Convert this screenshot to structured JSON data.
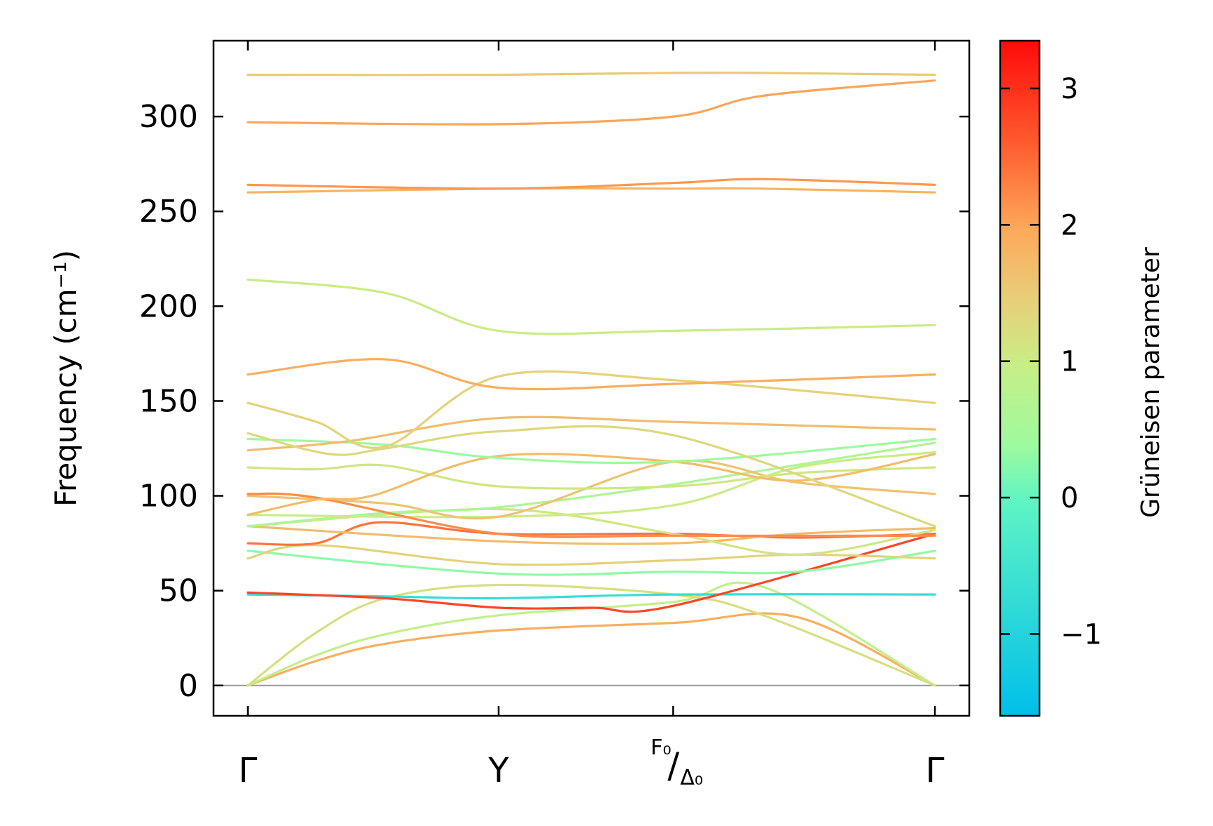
{
  "chart_data": {
    "type": "line",
    "title": "",
    "xlabel": "",
    "ylabel": "Frequency (cm⁻¹)",
    "ylim": [
      -16,
      340
    ],
    "yticks": [
      0,
      50,
      100,
      150,
      200,
      250,
      300
    ],
    "x_points": [
      {
        "label": "Γ",
        "x": 0.0
      },
      {
        "label": "Y",
        "x": 0.365
      },
      {
        "label": "F₀/Δ₀",
        "label_num": "F₀",
        "label_den": "Δ₀",
        "x": 0.619
      },
      {
        "label": "Γ",
        "x": 1.0
      }
    ],
    "xlim": [
      -0.05,
      1.05
    ],
    "colorbar": {
      "label": "Grüneisen parameter",
      "range": [
        -1.6,
        3.35
      ],
      "ticks": [
        -1,
        0,
        1,
        2,
        3
      ],
      "tick_labels": [
        "−1",
        "0",
        "1",
        "2",
        "3"
      ],
      "colors": [
        {
          "t": 0.0,
          "color": "#00bfea"
        },
        {
          "t": 0.32,
          "color": "#5ff5c4"
        },
        {
          "t": 0.4,
          "color": "#9dfa9f"
        },
        {
          "t": 0.52,
          "color": "#c8ee87"
        },
        {
          "t": 0.62,
          "color": "#e8cd78"
        },
        {
          "t": 0.72,
          "color": "#fca95a"
        },
        {
          "t": 0.85,
          "color": "#ff5a2e"
        },
        {
          "t": 1.0,
          "color": "#ff0a0a"
        }
      ]
    },
    "series": [
      {
        "name": "branch-1",
        "x": [
          0,
          0.1,
          0.2,
          0.365,
          0.619,
          0.8,
          1.0
        ],
        "y": [
          0,
          13,
          22,
          29,
          33,
          36,
          0
        ],
        "g": 1.9
      },
      {
        "name": "branch-2",
        "x": [
          0,
          0.1,
          0.2,
          0.365,
          0.619,
          0.75,
          1.0
        ],
        "y": [
          0,
          16,
          27,
          37,
          44,
          52,
          0
        ],
        "g": 0.9
      },
      {
        "name": "branch-3",
        "x": [
          0,
          0.1,
          0.2,
          0.365,
          0.619,
          0.75,
          1.0
        ],
        "y": [
          0,
          28,
          46,
          53,
          48,
          37,
          0
        ],
        "g": 1.2
      },
      {
        "name": "branch-4",
        "x": [
          0,
          0.2,
          0.365,
          0.619,
          1.0
        ],
        "y": [
          48,
          47,
          46,
          48,
          48
        ],
        "g": -0.7
      },
      {
        "name": "branch-5",
        "x": [
          0,
          0.2,
          0.365,
          0.5,
          0.619,
          1.0
        ],
        "y": [
          49,
          46,
          41,
          41,
          42,
          80
        ],
        "g": 2.8
      },
      {
        "name": "branch-6",
        "x": [
          0,
          0.365,
          0.619,
          0.8,
          1.0
        ],
        "y": [
          71,
          59,
          60,
          60,
          71
        ],
        "g": 0.3
      },
      {
        "name": "branch-7",
        "x": [
          0,
          0.1,
          0.365,
          0.619,
          0.8,
          1.0
        ],
        "y": [
          67,
          74,
          64,
          66,
          69,
          67
        ],
        "g": 1.4
      },
      {
        "name": "branch-8",
        "x": [
          0,
          0.1,
          0.19,
          0.365,
          0.619,
          0.8,
          1.0
        ],
        "y": [
          75,
          75,
          86,
          80,
          80,
          78,
          80
        ],
        "g": 2.4
      },
      {
        "name": "branch-9",
        "x": [
          0,
          0.365,
          0.619,
          0.8,
          1.0
        ],
        "y": [
          84,
          76,
          75,
          80,
          83
        ],
        "g": 1.7
      },
      {
        "name": "branch-10",
        "x": [
          0,
          0.365,
          0.619,
          0.8,
          1.0
        ],
        "y": [
          84,
          93,
          80,
          69,
          82
        ],
        "g": 1.1
      },
      {
        "name": "branch-11",
        "x": [
          0,
          0.2,
          0.365,
          0.619,
          1.0
        ],
        "y": [
          84,
          91,
          94,
          106,
          128
        ],
        "g": 0.6
      },
      {
        "name": "branch-12",
        "x": [
          0,
          0.365,
          0.619,
          0.8,
          1.0
        ],
        "y": [
          90,
          89,
          95,
          115,
          123
        ],
        "g": 1.0
      },
      {
        "name": "branch-13",
        "x": [
          0,
          0.2,
          0.365,
          0.619,
          0.8,
          1.0
        ],
        "y": [
          100,
          96,
          89,
          118,
          107,
          101
        ],
        "g": 1.6
      },
      {
        "name": "branch-14",
        "x": [
          0,
          0.1,
          0.365,
          0.619,
          1.0
        ],
        "y": [
          101,
          99,
          80,
          79,
          79
        ],
        "g": 2.2
      },
      {
        "name": "branch-15",
        "x": [
          0,
          0.1,
          0.2,
          0.365,
          0.619,
          0.8,
          1.0
        ],
        "y": [
          115,
          114,
          116,
          105,
          105,
          112,
          115
        ],
        "g": 1.1
      },
      {
        "name": "branch-16",
        "x": [
          0,
          0.1,
          0.18,
          0.365,
          0.619,
          0.8,
          1.0
        ],
        "y": [
          90,
          98,
          100,
          121,
          118,
          108,
          122
        ],
        "g": 1.7
      },
      {
        "name": "branch-17",
        "x": [
          0,
          0.2,
          0.365,
          0.619,
          1.0
        ],
        "y": [
          130,
          127,
          120,
          118,
          130
        ],
        "g": 0.4
      },
      {
        "name": "branch-18",
        "x": [
          0,
          0.15,
          0.365,
          0.619,
          1.0
        ],
        "y": [
          124,
          129,
          141,
          139,
          135
        ],
        "g": 1.7
      },
      {
        "name": "branch-19",
        "x": [
          0,
          0.12,
          0.2,
          0.365,
          0.619,
          1.0
        ],
        "y": [
          133,
          122,
          125,
          134,
          132,
          84
        ],
        "g": 1.3
      },
      {
        "name": "branch-20",
        "x": [
          0,
          0.1,
          0.2,
          0.365,
          0.619,
          1.0
        ],
        "y": [
          149,
          139,
          126,
          163,
          161,
          149
        ],
        "g": 1.4
      },
      {
        "name": "branch-21",
        "x": [
          0,
          0.2,
          0.365,
          0.619,
          1.0
        ],
        "y": [
          164,
          172,
          157,
          159,
          164
        ],
        "g": 1.9
      },
      {
        "name": "branch-22",
        "x": [
          0,
          0.2,
          0.365,
          0.619,
          1.0
        ],
        "y": [
          214,
          207,
          187,
          187,
          190
        ],
        "g": 1.0
      },
      {
        "name": "branch-23",
        "x": [
          0,
          0.365,
          0.619,
          0.75,
          1.0
        ],
        "y": [
          260,
          262,
          262,
          262,
          260
        ],
        "g": 1.8
      },
      {
        "name": "branch-24",
        "x": [
          0,
          0.365,
          0.619,
          0.75,
          1.0
        ],
        "y": [
          264,
          262,
          265,
          267,
          264
        ],
        "g": 2.1
      },
      {
        "name": "branch-25",
        "x": [
          0,
          0.365,
          0.619,
          0.75,
          1.0
        ],
        "y": [
          297,
          296,
          300,
          311,
          319
        ],
        "g": 2.0
      },
      {
        "name": "branch-26",
        "x": [
          0,
          0.365,
          0.619,
          0.75,
          1.0
        ],
        "y": [
          322,
          322,
          323,
          323,
          322
        ],
        "g": 1.5
      }
    ]
  }
}
